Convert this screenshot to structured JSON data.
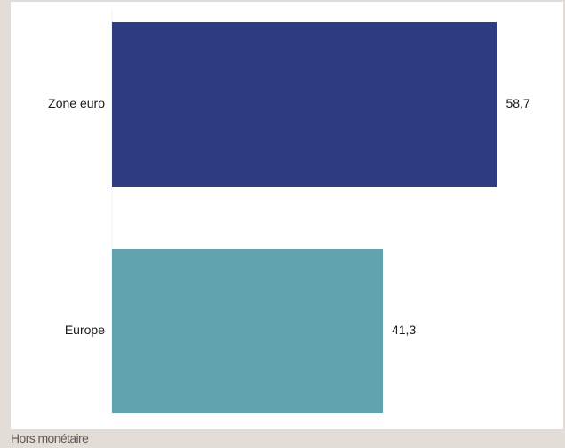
{
  "chart_data": {
    "type": "bar",
    "orientation": "horizontal",
    "categories": [
      "Zone euro",
      "Europe"
    ],
    "values": [
      58.7,
      41.3
    ],
    "value_labels": [
      "58,7",
      "41,3"
    ],
    "colors": [
      "#2e3d82",
      "#60a3ae"
    ],
    "xlim": [
      0,
      65
    ],
    "grid": false,
    "title": "",
    "xlabel": "",
    "ylabel": ""
  },
  "footer": {
    "note": "Hors monétaire"
  }
}
